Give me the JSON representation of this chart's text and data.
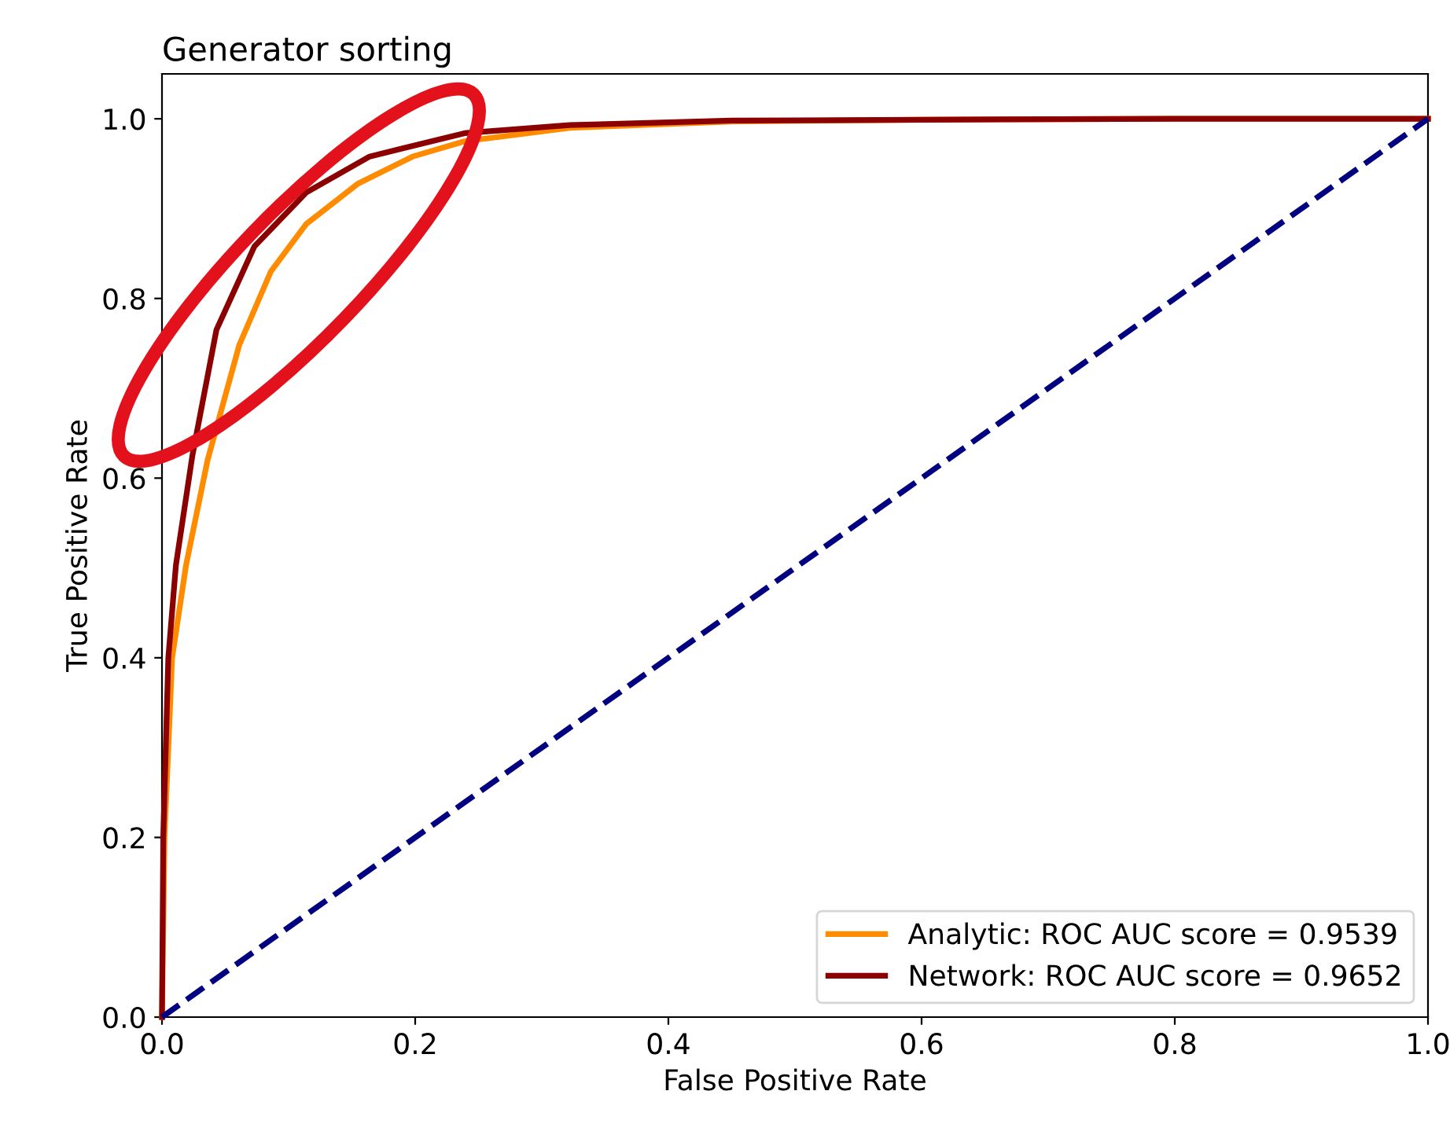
{
  "chart_data": {
    "type": "line",
    "title": "Generator sorting",
    "xlabel": "False Positive Rate",
    "ylabel": "True Positive Rate",
    "series": [
      {
        "name": "Analytic: ROC AUC score = 0.9539",
        "color": "#ff8c00",
        "x": [
          0,
          0.002,
          0.008,
          0.019,
          0.036,
          0.061,
          0.086,
          0.114,
          0.155,
          0.198,
          0.239,
          0.322,
          0.45,
          0.6,
          0.8,
          1.0
        ],
        "values": [
          0,
          0.2,
          0.4,
          0.503,
          0.62,
          0.748,
          0.83,
          0.883,
          0.928,
          0.958,
          0.975,
          0.99,
          0.997,
          0.999,
          1.0,
          1.0
        ]
      },
      {
        "name": "Network: ROC AUC score = 0.9652",
        "color": "#8b0000",
        "x": [
          0,
          0.001,
          0.005,
          0.011,
          0.024,
          0.043,
          0.073,
          0.114,
          0.164,
          0.239,
          0.322,
          0.45,
          0.6,
          0.8,
          1.0
        ],
        "values": [
          0,
          0.2,
          0.4,
          0.503,
          0.625,
          0.765,
          0.858,
          0.918,
          0.958,
          0.984,
          0.993,
          0.998,
          0.999,
          1.0,
          1.0
        ]
      },
      {
        "color": "#000080",
        "line_style": "dashed",
        "x": [
          0,
          1
        ],
        "values": [
          0,
          1
        ]
      }
    ],
    "xlim": [
      0,
      1
    ],
    "ylim": [
      0,
      1.05
    ],
    "xticks": [
      {
        "value": 0,
        "label": "0.0"
      },
      0.2,
      0.4,
      0.6,
      0.8,
      {
        "value": 1,
        "label": "1.0"
      }
    ],
    "yticks": [
      {
        "value": 0,
        "label": "0.0"
      },
      0.2,
      0.4,
      0.6,
      0.8,
      {
        "value": 1,
        "label": "1.0"
      }
    ],
    "grid": false,
    "legend": "bottom right",
    "marker": "none",
    "line_style": "solid"
  }
}
